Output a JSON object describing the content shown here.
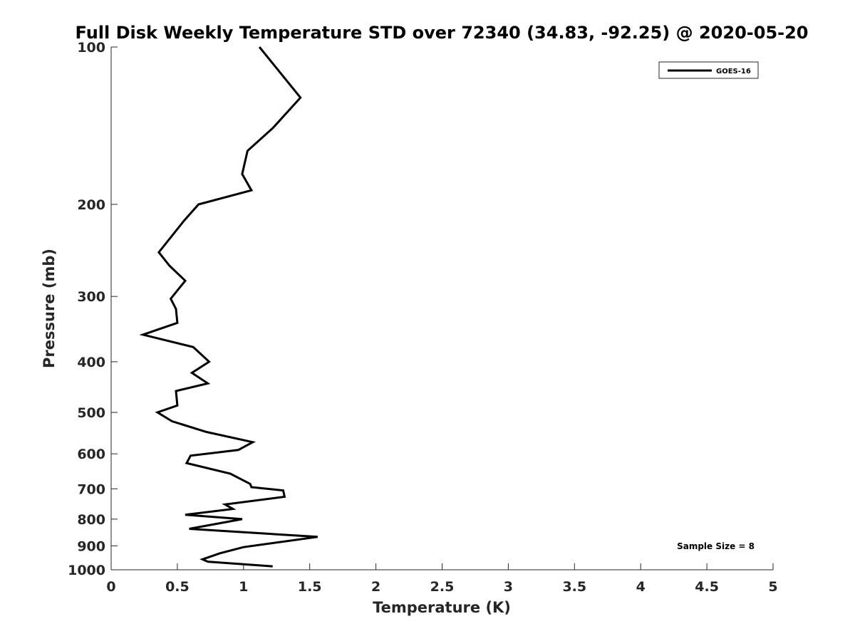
{
  "chart_data": {
    "type": "line",
    "title": "Full Disk Weekly Temperature STD over 72340 (34.83, -92.25) @ 2020-05-20",
    "xlabel": "Temperature (K)",
    "ylabel": "Pressure (mb)",
    "xlim": [
      0,
      5
    ],
    "ylim": [
      1000,
      100
    ],
    "y_scale": "log",
    "y_reversed": true,
    "x_ticks": [
      "0",
      "0.5",
      "1",
      "1.5",
      "2",
      "2.5",
      "3",
      "3.5",
      "4",
      "4.5",
      "5"
    ],
    "y_ticks": [
      "100",
      "200",
      "300",
      "400",
      "500",
      "600",
      "700",
      "800",
      "900",
      "1000"
    ],
    "grid": false,
    "legend": {
      "placement": "top-right",
      "entries": [
        "GOES-16"
      ]
    },
    "annotation": "Sample Size = 8",
    "line_color": "#000000",
    "series": [
      {
        "name": "GOES-16",
        "x": [
          1.12,
          1.43,
          1.22,
          1.03,
          0.99,
          1.06,
          0.66,
          0.55,
          0.36,
          0.44,
          0.56,
          0.45,
          0.49,
          0.5,
          0.24,
          0.62,
          0.74,
          0.61,
          0.73,
          0.49,
          0.5,
          0.35,
          0.46,
          0.72,
          1.07,
          0.96,
          0.6,
          0.57,
          0.9,
          1.05,
          1.06,
          1.3,
          1.31,
          0.86,
          0.92,
          0.56,
          0.99,
          0.59,
          1.56,
          1.0,
          0.82,
          0.69,
          0.73,
          1.22
        ],
        "y": [
          100,
          125,
          143,
          158,
          175,
          188,
          200,
          215,
          247,
          262,
          280,
          303,
          317,
          337,
          355,
          375,
          400,
          420,
          440,
          455,
          485,
          500,
          520,
          545,
          570,
          590,
          605,
          625,
          655,
          685,
          695,
          705,
          725,
          750,
          765,
          785,
          800,
          835,
          865,
          905,
          930,
          955,
          965,
          985
        ]
      }
    ]
  }
}
